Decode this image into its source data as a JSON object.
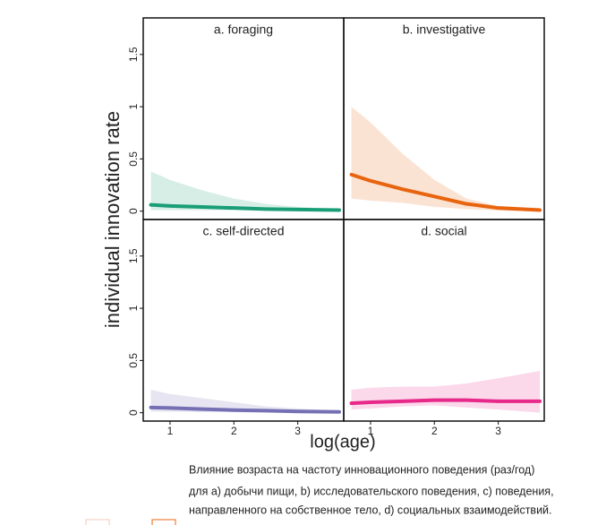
{
  "figure": {
    "ylabel": "individual innovation rate",
    "xlabel": "log(age)",
    "xlim": [
      0.58,
      3.72
    ],
    "ylim": [
      -0.08,
      1.85
    ],
    "xticks": [
      1,
      2,
      3
    ],
    "yticks": [
      0,
      0.5,
      1,
      1.5
    ],
    "caption": [
      "Влияние возраста на частоту инновационного поведения (раз/год)",
      "для a) добычи пищи, b) исследовательского поведения, c) поведения,",
      "направленного на собственное тело, d) социальных взаимодействий."
    ]
  },
  "chart_data": [
    {
      "type": "line",
      "title": "a. foraging",
      "color": "#1a9e77",
      "x": [
        0.7,
        1.0,
        1.5,
        2.0,
        2.5,
        3.0,
        3.65
      ],
      "values": [
        0.06,
        0.05,
        0.04,
        0.03,
        0.02,
        0.015,
        0.01
      ],
      "upper": [
        0.38,
        0.3,
        0.2,
        0.12,
        0.07,
        0.04,
        0.02
      ],
      "lower": [
        0.01,
        0.01,
        0.01,
        0.01,
        0.005,
        0,
        0
      ]
    },
    {
      "type": "line",
      "title": "b. investigative",
      "color": "#e8640e",
      "x": [
        0.7,
        1.0,
        1.5,
        2.0,
        2.5,
        3.0,
        3.65
      ],
      "values": [
        0.35,
        0.29,
        0.21,
        0.14,
        0.07,
        0.03,
        0.01
      ],
      "upper": [
        1.0,
        0.85,
        0.55,
        0.3,
        0.12,
        0.05,
        0.03
      ],
      "lower": [
        0.12,
        0.1,
        0.08,
        0.04,
        0.02,
        0.005,
        0
      ]
    },
    {
      "type": "line",
      "title": "c. self-directed",
      "color": "#7570b3",
      "x": [
        0.7,
        1.0,
        1.5,
        2.0,
        2.5,
        3.0,
        3.65
      ],
      "values": [
        0.05,
        0.045,
        0.035,
        0.025,
        0.02,
        0.012,
        0.008
      ],
      "upper": [
        0.22,
        0.18,
        0.14,
        0.1,
        0.06,
        0.04,
        0.02
      ],
      "lower": [
        0.01,
        0.01,
        0.005,
        0.005,
        0,
        0,
        0
      ]
    },
    {
      "type": "line",
      "title": "d. social",
      "color": "#e7298a",
      "x": [
        0.7,
        1.0,
        1.5,
        2.0,
        2.5,
        3.0,
        3.65
      ],
      "values": [
        0.09,
        0.1,
        0.11,
        0.12,
        0.12,
        0.11,
        0.11
      ],
      "upper": [
        0.22,
        0.24,
        0.25,
        0.25,
        0.28,
        0.33,
        0.4
      ],
      "lower": [
        0.03,
        0.04,
        0.06,
        0.07,
        0.05,
        0.03,
        0
      ]
    }
  ]
}
